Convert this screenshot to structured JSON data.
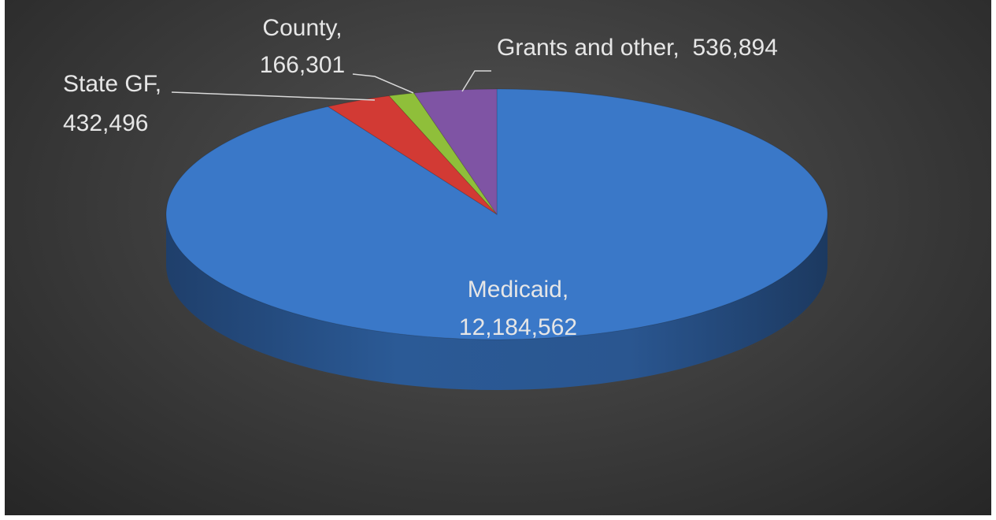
{
  "chart_data": {
    "type": "pie",
    "variant": "3d",
    "title": "",
    "slices": [
      {
        "name": "Medicaid",
        "value": 12184562,
        "color": "#3a78c8",
        "label_line1": "Medicaid,",
        "label_line2": "12,184,562"
      },
      {
        "name": "State GF",
        "value": 432496,
        "color": "#d23a34",
        "label_line1": "State GF,",
        "label_line2": "432,496"
      },
      {
        "name": "County",
        "value": 166301,
        "color": "#8fbf3a",
        "label_line1": "County,",
        "label_line2": "166,301"
      },
      {
        "name": "Grants and other",
        "value": 536894,
        "color": "#7f54a4",
        "label_line1": "Grants and other,  536,894",
        "label_line2": ""
      }
    ],
    "legend": "none"
  }
}
